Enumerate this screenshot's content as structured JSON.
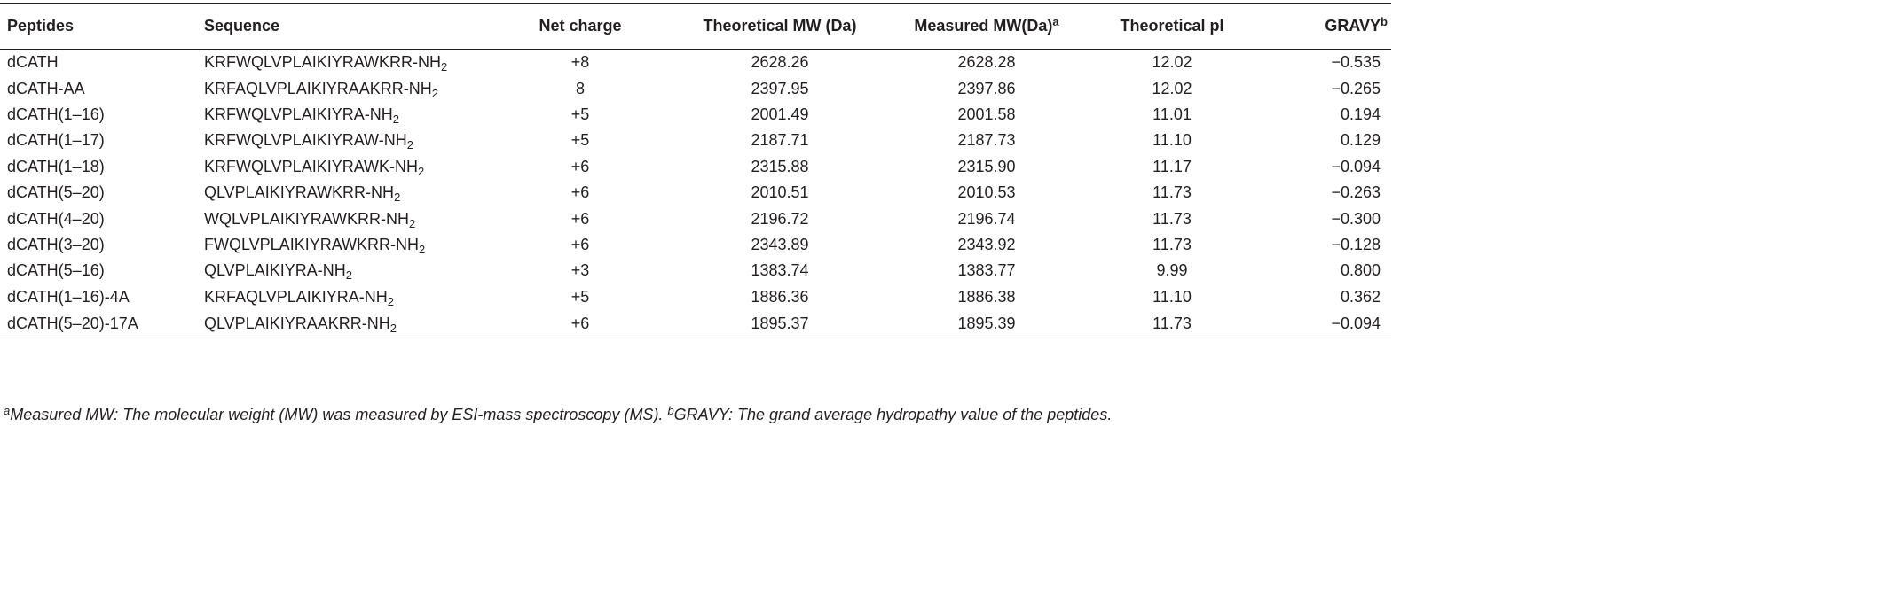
{
  "table": {
    "headers": {
      "peptides": "Peptides",
      "sequence": "Sequence",
      "net_charge": "Net charge",
      "theoretical_mw": "Theoretical MW (Da)",
      "measured_mw": "Measured MW(Da)",
      "measured_mw_mark": "a",
      "theoretical_pi": "Theoretical pI",
      "gravy": "GRAVY",
      "gravy_mark": "b"
    },
    "amide_suffix": "-NH",
    "amide_sub": "2",
    "rows": [
      {
        "peptide": "dCATH",
        "sequence": "KRFWQLVPLAIKIYRAWKRR",
        "net_charge": "+8",
        "theoretical_mw": "2628.26",
        "measured_mw": "2628.28",
        "theoretical_pi": "12.02",
        "gravy": "−0.535"
      },
      {
        "peptide": "dCATH-AA",
        "sequence": "KRFAQLVPLAIKIYRAAKRR",
        "net_charge": "8",
        "theoretical_mw": "2397.95",
        "measured_mw": "2397.86",
        "theoretical_pi": "12.02",
        "gravy": "−0.265"
      },
      {
        "peptide": "dCATH(1–16)",
        "sequence": "KRFWQLVPLAIKIYRA",
        "net_charge": "+5",
        "theoretical_mw": "2001.49",
        "measured_mw": "2001.58",
        "theoretical_pi": "11.01",
        "gravy": "0.194"
      },
      {
        "peptide": "dCATH(1–17)",
        "sequence": "KRFWQLVPLAIKIYRAW",
        "net_charge": "+5",
        "theoretical_mw": "2187.71",
        "measured_mw": "2187.73",
        "theoretical_pi": "11.10",
        "gravy": "0.129"
      },
      {
        "peptide": "dCATH(1–18)",
        "sequence": "KRFWQLVPLAIKIYRAWK",
        "net_charge": "+6",
        "theoretical_mw": "2315.88",
        "measured_mw": "2315.90",
        "theoretical_pi": "11.17",
        "gravy": "−0.094"
      },
      {
        "peptide": "dCATH(5–20)",
        "sequence": "QLVPLAIKIYRAWKRR",
        "net_charge": "+6",
        "theoretical_mw": "2010.51",
        "measured_mw": "2010.53",
        "theoretical_pi": "11.73",
        "gravy": "−0.263"
      },
      {
        "peptide": "dCATH(4–20)",
        "sequence": "WQLVPLAIKIYRAWKRR",
        "net_charge": "+6",
        "theoretical_mw": "2196.72",
        "measured_mw": "2196.74",
        "theoretical_pi": "11.73",
        "gravy": "−0.300"
      },
      {
        "peptide": "dCATH(3–20)",
        "sequence": "FWQLVPLAIKIYRAWKRR",
        "net_charge": "+6",
        "theoretical_mw": "2343.89",
        "measured_mw": "2343.92",
        "theoretical_pi": "11.73",
        "gravy": "−0.128"
      },
      {
        "peptide": "dCATH(5–16)",
        "sequence": "QLVPLAIKIYRA",
        "net_charge": "+3",
        "theoretical_mw": "1383.74",
        "measured_mw": "1383.77",
        "theoretical_pi": "9.99",
        "gravy": "0.800"
      },
      {
        "peptide": "dCATH(1–16)-4A",
        "sequence": "KRFAQLVPLAIKIYRA",
        "net_charge": "+5",
        "theoretical_mw": "1886.36",
        "measured_mw": "1886.38",
        "theoretical_pi": "11.10",
        "gravy": "0.362"
      },
      {
        "peptide": "dCATH(5–20)-17A",
        "sequence": "QLVPLAIKIYRAAKRR",
        "net_charge": "+6",
        "theoretical_mw": "1895.37",
        "measured_mw": "1895.39",
        "theoretical_pi": "11.73",
        "gravy": "−0.094"
      }
    ]
  },
  "footnote": {
    "a_mark": "a",
    "a_text": "Measured MW: The molecular weight (MW) was measured by ESI-mass spectroscopy (MS). ",
    "b_mark": "b",
    "b_text": "GRAVY: The grand average hydropathy value of the peptides."
  }
}
